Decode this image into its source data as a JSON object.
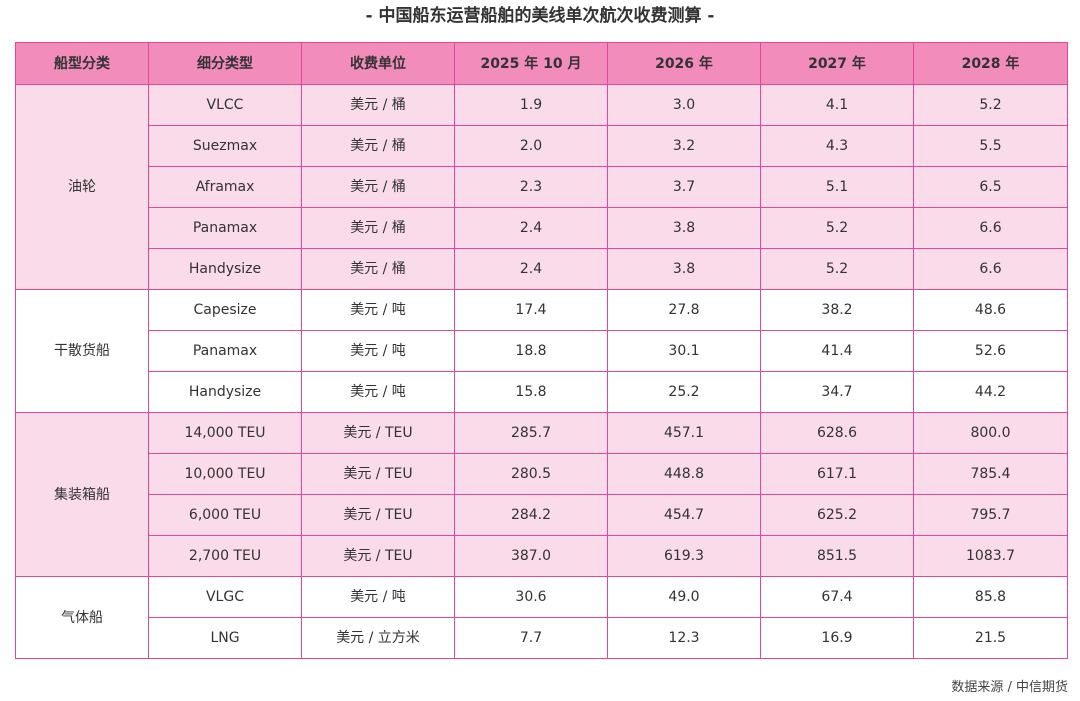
{
  "title": "- 中国船东运营船舶的美线单次航次收费测算 -",
  "table": {
    "headers": [
      "船型分类",
      "细分类型",
      "收费单位",
      "2025 年 10 月",
      "2026 年",
      "2027 年",
      "2028 年"
    ],
    "groups": [
      {
        "category": "油轮",
        "rows": [
          {
            "type": "VLCC",
            "unit": "美元 / 桶",
            "v2025": "1.9",
            "v2026": "3.0",
            "v2027": "4.1",
            "v2028": "5.2"
          },
          {
            "type": "Suezmax",
            "unit": "美元 / 桶",
            "v2025": "2.0",
            "v2026": "3.2",
            "v2027": "4.3",
            "v2028": "5.5"
          },
          {
            "type": "Aframax",
            "unit": "美元 / 桶",
            "v2025": "2.3",
            "v2026": "3.7",
            "v2027": "5.1",
            "v2028": "6.5"
          },
          {
            "type": "Panamax",
            "unit": "美元 / 桶",
            "v2025": "2.4",
            "v2026": "3.8",
            "v2027": "5.2",
            "v2028": "6.6"
          },
          {
            "type": "Handysize",
            "unit": "美元 / 桶",
            "v2025": "2.4",
            "v2026": "3.8",
            "v2027": "5.2",
            "v2028": "6.6"
          }
        ]
      },
      {
        "category": "干散货船",
        "rows": [
          {
            "type": "Capesize",
            "unit": "美元 / 吨",
            "v2025": "17.4",
            "v2026": "27.8",
            "v2027": "38.2",
            "v2028": "48.6"
          },
          {
            "type": "Panamax",
            "unit": "美元 / 吨",
            "v2025": "18.8",
            "v2026": "30.1",
            "v2027": "41.4",
            "v2028": "52.6"
          },
          {
            "type": "Handysize",
            "unit": "美元 / 吨",
            "v2025": "15.8",
            "v2026": "25.2",
            "v2027": "34.7",
            "v2028": "44.2"
          }
        ]
      },
      {
        "category": "集装箱船",
        "rows": [
          {
            "type": "14,000 TEU",
            "unit": "美元 / TEU",
            "v2025": "285.7",
            "v2026": "457.1",
            "v2027": "628.6",
            "v2028": "800.0"
          },
          {
            "type": "10,000 TEU",
            "unit": "美元 / TEU",
            "v2025": "280.5",
            "v2026": "448.8",
            "v2027": "617.1",
            "v2028": "785.4"
          },
          {
            "type": "6,000 TEU",
            "unit": "美元 / TEU",
            "v2025": "284.2",
            "v2026": "454.7",
            "v2027": "625.2",
            "v2028": "795.7"
          },
          {
            "type": "2,700 TEU",
            "unit": "美元 / TEU",
            "v2025": "387.0",
            "v2026": "619.3",
            "v2027": "851.5",
            "v2028": "1083.7"
          }
        ]
      },
      {
        "category": "气体船",
        "rows": [
          {
            "type": "VLGC",
            "unit": "美元 / 吨",
            "v2025": "30.6",
            "v2026": "49.0",
            "v2027": "67.4",
            "v2028": "85.8"
          },
          {
            "type": "LNG",
            "unit": "美元 / 立方米",
            "v2025": "7.7",
            "v2026": "12.3",
            "v2027": "16.9",
            "v2028": "21.5"
          }
        ]
      }
    ]
  },
  "source": "数据来源 / 中信期货",
  "colors": {
    "header_bg": "#f28cba",
    "pink_band": "#fadbe9",
    "border": "#e3479a"
  }
}
